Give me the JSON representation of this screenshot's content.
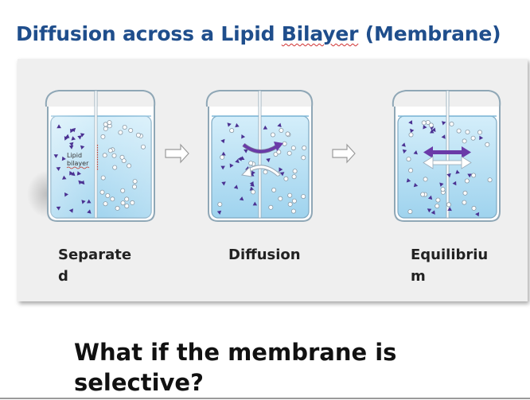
{
  "title_part1": "Diffusion across a Lipid ",
  "title_part2": "Bilayer",
  "title_part3": " (Membrane)",
  "membrane_label_line1": "Lipid",
  "membrane_label_line2": "bilayer",
  "stages": [
    {
      "label": "Separated"
    },
    {
      "label": "Diffusion"
    },
    {
      "label": "Equilibrium"
    }
  ],
  "question": "What if the membrane is selective?",
  "colors": {
    "title": "#1f4e8c",
    "water": "#a9d9f2",
    "triangle_solute": "#4b3192",
    "circle_solute": "#ffffff",
    "arrow_purple": "#6a3aa8",
    "membrane_mark": "#c0392b"
  }
}
